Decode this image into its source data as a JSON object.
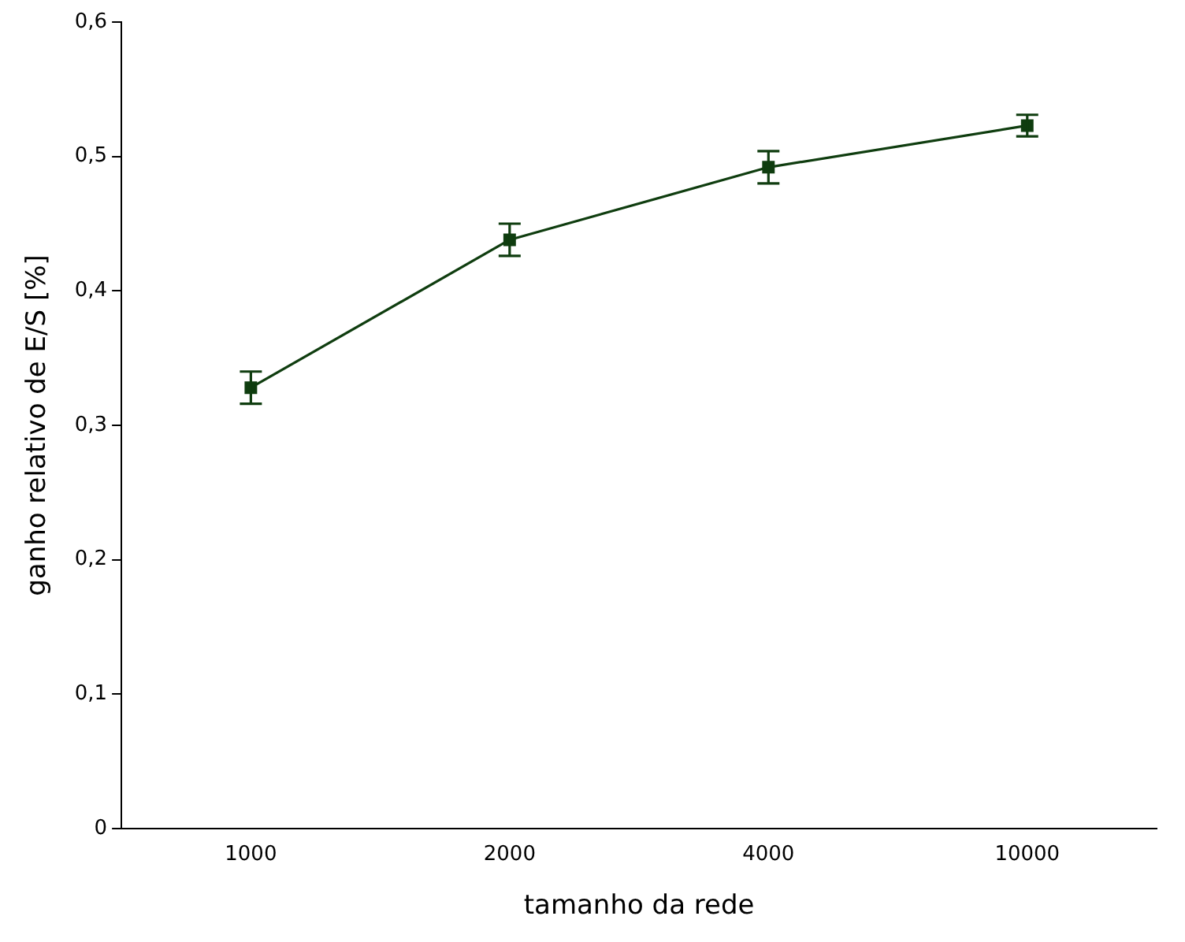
{
  "chart_data": {
    "type": "line",
    "xlabel": "tamanho da rede",
    "ylabel": "ganho relativo de E/S [%]",
    "categories": [
      "1000",
      "2000",
      "4000",
      "10000"
    ],
    "series": [
      {
        "color": "#0f3d0f",
        "values": [
          0.328,
          0.438,
          0.492,
          0.523
        ],
        "errors": [
          0.012,
          0.012,
          0.012,
          0.008
        ]
      }
    ],
    "ylim": [
      0,
      0.6
    ],
    "yticks": [
      {
        "value": 0,
        "label": "0"
      },
      {
        "value": 0.1,
        "label": "0,1"
      },
      {
        "value": 0.2,
        "label": "0,2"
      },
      {
        "value": 0.3,
        "label": "0,3"
      },
      {
        "value": 0.4,
        "label": "0,4"
      },
      {
        "value": 0.5,
        "label": "0,5"
      },
      {
        "value": 0.6,
        "label": "0,6"
      }
    ],
    "grid": false,
    "legend": false,
    "marker": "square",
    "line_style": "solid"
  }
}
